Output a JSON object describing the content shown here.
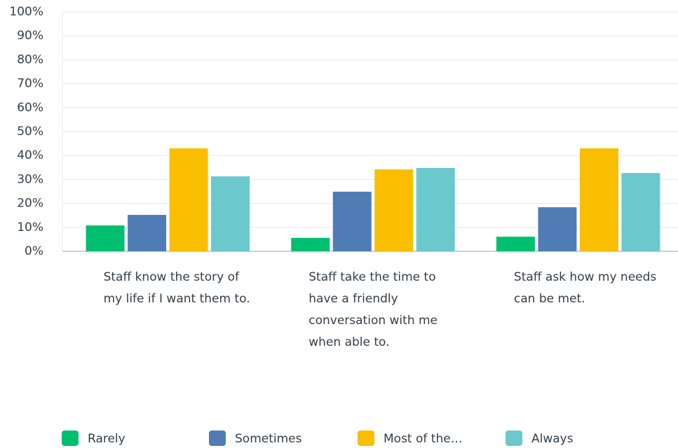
{
  "chart_data": {
    "type": "bar",
    "categories": [
      "Staff know the story of my life if I want them to.",
      "Staff take the time to have a friendly conversation with me when able to.",
      "Staff ask how my needs can be met."
    ],
    "series": [
      {
        "name": "Rarely",
        "color": "#00bf6f",
        "values": [
          10.8,
          5.6,
          6.1
        ]
      },
      {
        "name": "Sometimes",
        "color": "#507cb6",
        "values": [
          15.2,
          24.9,
          18.4
        ]
      },
      {
        "name": "Most of the…",
        "color": "#f9be00",
        "values": [
          43,
          34.2,
          43
        ]
      },
      {
        "name": "Always",
        "color": "#6bc8cd",
        "values": [
          31.3,
          34.8,
          32.7
        ]
      }
    ],
    "ylim": [
      0,
      100
    ],
    "yticks": [
      {
        "value": 0,
        "label": "0%"
      },
      {
        "value": 10,
        "label": "10%"
      },
      {
        "value": 20,
        "label": "20%"
      },
      {
        "value": 30,
        "label": "30%"
      },
      {
        "value": 40,
        "label": "40%"
      },
      {
        "value": 50,
        "label": "50%"
      },
      {
        "value": 60,
        "label": "60%"
      },
      {
        "value": 70,
        "label": "70%"
      },
      {
        "value": 80,
        "label": "80%"
      },
      {
        "value": 90,
        "label": "90%"
      },
      {
        "value": 100,
        "label": "100%"
      }
    ],
    "grid": true,
    "legend": "bottom"
  }
}
